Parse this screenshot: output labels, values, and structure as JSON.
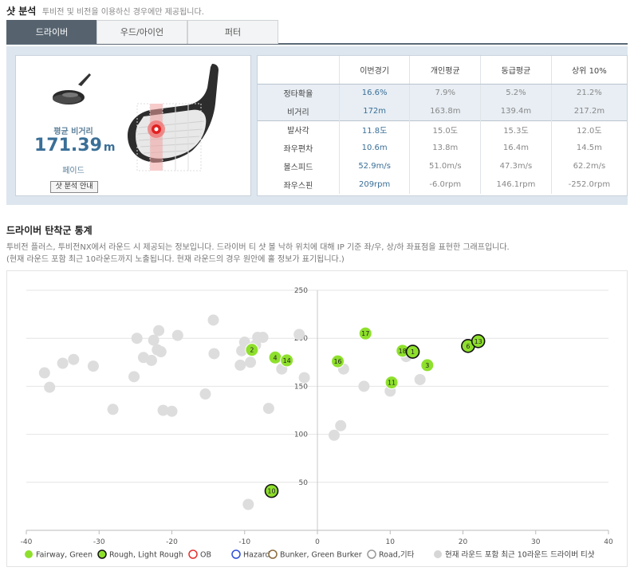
{
  "header": {
    "title": "샷 분석",
    "subtitle": "투비전 및 비전을 이용하신 경우에만 제공됩니다."
  },
  "tabs": [
    {
      "label": "드라이버",
      "active": true
    },
    {
      "label": "우드/아이언",
      "active": false
    },
    {
      "label": "퍼터",
      "active": false
    }
  ],
  "summary": {
    "avg_label": "평균 비거리",
    "avg_value": "171.39",
    "avg_unit": "m",
    "shot_type": "페이드",
    "guide_button": "샷 분석 안내"
  },
  "stats_table": {
    "headers": [
      "",
      "이번경기",
      "개인평균",
      "동급평균",
      "상위 10%"
    ],
    "rows": [
      [
        "정타확율",
        "16.6%",
        "7.9%",
        "5.2%",
        "21.2%"
      ],
      [
        "비거리",
        "172m",
        "163.8m",
        "139.4m",
        "217.2m"
      ],
      [
        "발사각",
        "11.8도",
        "15.0도",
        "15.3도",
        "12.0도"
      ],
      [
        "좌우편차",
        "10.6m",
        "13.8m",
        "16.4m",
        "14.5m"
      ],
      [
        "볼스피드",
        "52.9m/s",
        "51.0m/s",
        "47.3m/s",
        "62.2m/s"
      ],
      [
        "좌우스핀",
        "209rpm",
        "-6.0rpm",
        "146.1rpm",
        "-252.0rpm"
      ]
    ]
  },
  "section": {
    "title": "드라이버 탄착군 통계",
    "desc1": "투비전 플러스, 투비전NX에서 라운드 시 제공되는 정보입니다. 드라이버 티 샷 볼 낙하 위치에 대해 IP 기준 좌/우, 상/하 좌표점을 표현한 그래프입니다.",
    "desc2": "(현재 라운드 포함 최근 10라운드까지 노출됩니다. 현재 라운드의 경우 원안에 홀 정보가 표기됩니다.)"
  },
  "chart_data": {
    "type": "scatter",
    "xlim": [
      -40,
      40
    ],
    "ylim": [
      0,
      250
    ],
    "x_ticks": [
      "-40",
      "-30",
      "-20",
      "-10",
      "0",
      "10",
      "20",
      "30",
      "40"
    ],
    "y_ticks": [
      "50",
      "100",
      "150",
      "200",
      "250"
    ],
    "grid": true,
    "colors": {
      "fairway": "#8ee02c",
      "rough_fill": "#8ee02c",
      "rough_stroke": "#111111",
      "past": "#dddddd"
    },
    "current_round": [
      {
        "hole": "2",
        "x": -9,
        "y": 188,
        "type": "fairway"
      },
      {
        "hole": "4",
        "x": -5.8,
        "y": 180,
        "type": "fairway"
      },
      {
        "hole": "14",
        "x": -4.2,
        "y": 177,
        "type": "fairway"
      },
      {
        "hole": "16",
        "x": 2.8,
        "y": 176,
        "type": "fairway"
      },
      {
        "hole": "17",
        "x": 6.6,
        "y": 205,
        "type": "fairway"
      },
      {
        "hole": "11",
        "x": 10.2,
        "y": 154,
        "type": "fairway"
      },
      {
        "hole": "18",
        "x": 11.7,
        "y": 187,
        "type": "fairway"
      },
      {
        "hole": "1",
        "x": 13.1,
        "y": 186,
        "type": "rough"
      },
      {
        "hole": "3",
        "x": 15.1,
        "y": 172,
        "type": "fairway"
      },
      {
        "hole": "6",
        "x": 20.7,
        "y": 192,
        "type": "rough"
      },
      {
        "hole": "13",
        "x": 22.1,
        "y": 197,
        "type": "rough"
      },
      {
        "hole": "10",
        "x": -6.3,
        "y": 41,
        "type": "rough"
      }
    ],
    "past_rounds": [
      {
        "x": -37.5,
        "y": 164
      },
      {
        "x": -36.8,
        "y": 149
      },
      {
        "x": -35,
        "y": 174
      },
      {
        "x": -33.5,
        "y": 178
      },
      {
        "x": -30.8,
        "y": 171
      },
      {
        "x": -28.1,
        "y": 126
      },
      {
        "x": -25.2,
        "y": 160
      },
      {
        "x": -24.8,
        "y": 200
      },
      {
        "x": -23.9,
        "y": 180
      },
      {
        "x": -22.8,
        "y": 177
      },
      {
        "x": -22.5,
        "y": 198
      },
      {
        "x": -22,
        "y": 188
      },
      {
        "x": -21.8,
        "y": 208
      },
      {
        "x": -21.5,
        "y": 186
      },
      {
        "x": -21.2,
        "y": 125
      },
      {
        "x": -20,
        "y": 124
      },
      {
        "x": -19.2,
        "y": 203
      },
      {
        "x": -15.4,
        "y": 142
      },
      {
        "x": -14.3,
        "y": 219
      },
      {
        "x": -14.2,
        "y": 184
      },
      {
        "x": -10.6,
        "y": 172
      },
      {
        "x": -10.4,
        "y": 187
      },
      {
        "x": -10,
        "y": 196
      },
      {
        "x": -9.2,
        "y": 175
      },
      {
        "x": -8.5,
        "y": 193
      },
      {
        "x": -8.2,
        "y": 201
      },
      {
        "x": -7.5,
        "y": 201
      },
      {
        "x": -6.7,
        "y": 127
      },
      {
        "x": -4.9,
        "y": 168
      },
      {
        "x": -2.5,
        "y": 204
      },
      {
        "x": -1.8,
        "y": 159
      },
      {
        "x": 2.3,
        "y": 99
      },
      {
        "x": 3.2,
        "y": 109
      },
      {
        "x": 3.6,
        "y": 168
      },
      {
        "x": 6.4,
        "y": 150
      },
      {
        "x": 10,
        "y": 145
      },
      {
        "x": 12.2,
        "y": 181
      },
      {
        "x": 14.1,
        "y": 157
      },
      {
        "x": -9.5,
        "y": 27
      }
    ],
    "legend": [
      {
        "label": "Fairway, Green",
        "style": "fairway"
      },
      {
        "label": "Rough, Light Rough",
        "style": "rough"
      },
      {
        "label": "OB",
        "style": "ob"
      },
      {
        "label": "Hazard",
        "style": "hazard"
      },
      {
        "label": "Bunker, Green Burker",
        "style": "bunker"
      },
      {
        "label": "Road,기타",
        "style": "road"
      },
      {
        "label": "현재 라운드 포함 최근 10라운드 드라이버 티샷",
        "style": "past"
      }
    ]
  }
}
